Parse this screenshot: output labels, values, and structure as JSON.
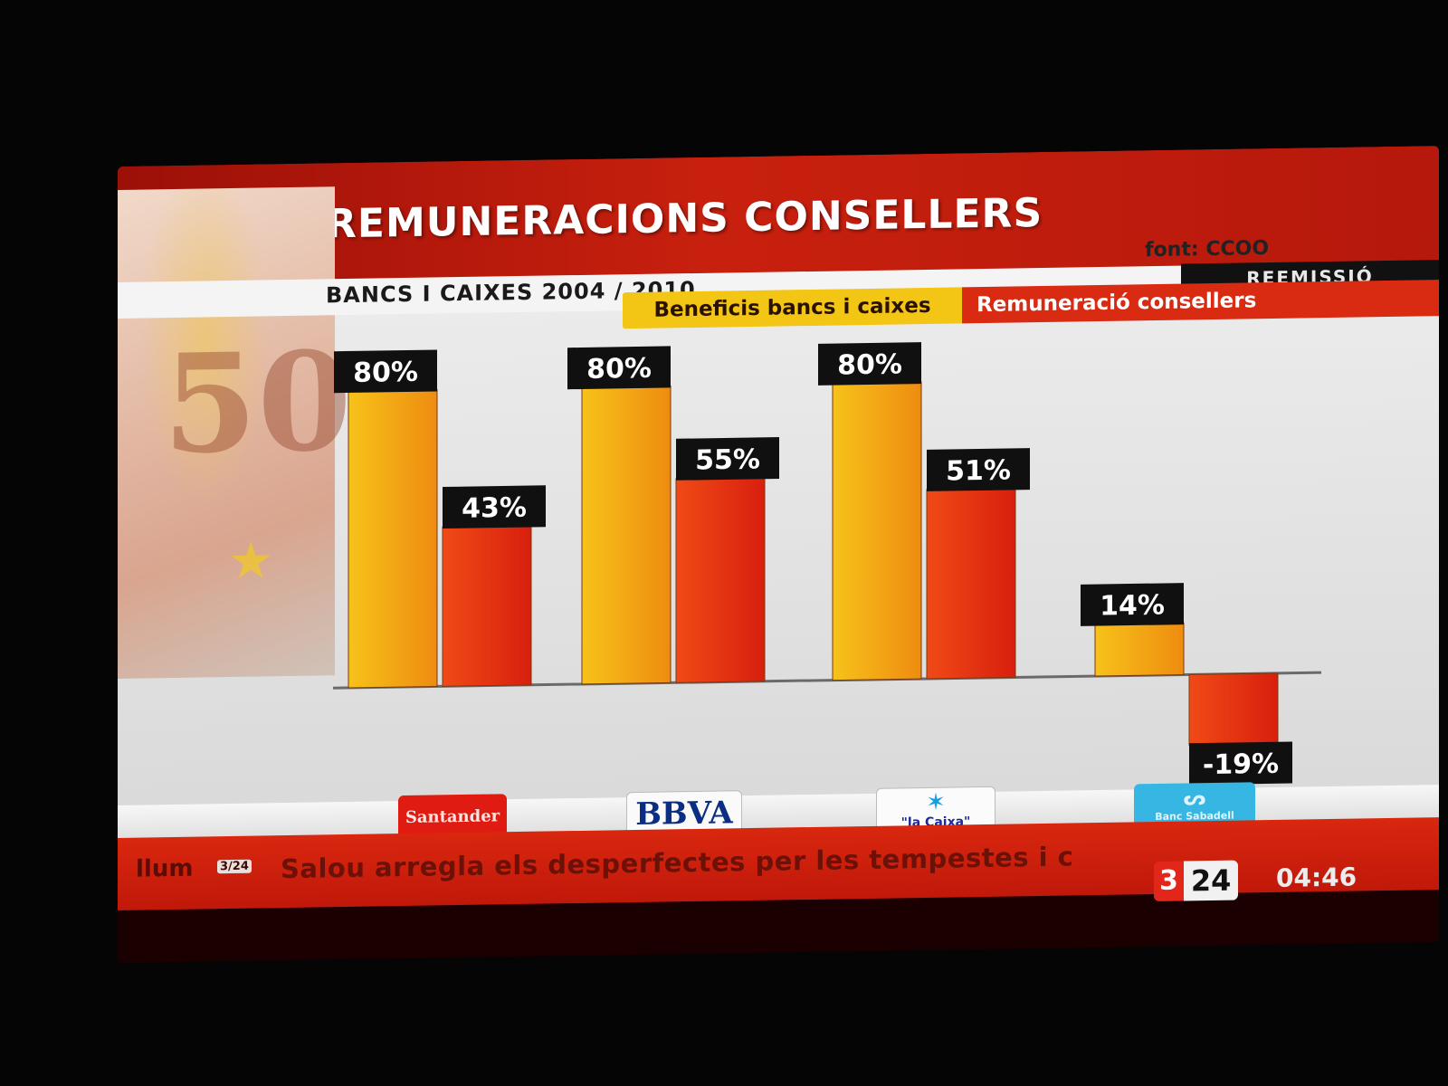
{
  "header": {
    "title": "REMUNERACIONS CONSELLERS",
    "subtitle": "BANCS I CAIXES 2004 / 2010",
    "source": "font: CCOO",
    "rebroadcast": "REEMISSIÓ"
  },
  "legend": {
    "profits": "Beneficis bancs i caixes",
    "pay": "Remuneració consellers"
  },
  "colors": {
    "profits": "#f0a812",
    "pay": "#e83214",
    "label_bg": "#101010",
    "band": "#c41c0e"
  },
  "chart_data": {
    "type": "bar",
    "title": "REMUNERACIONS CONSELLERS",
    "subtitle": "BANCS I CAIXES 2004 / 2010",
    "categories": [
      "Santander",
      "BBVA",
      "la Caixa",
      "Banc Sabadell"
    ],
    "series": [
      {
        "name": "Beneficis bancs i caixes",
        "values": [
          80,
          80,
          80,
          14
        ],
        "labels": [
          "80%",
          "80%",
          "80%",
          "14%"
        ]
      },
      {
        "name": "Remuneració consellers",
        "values": [
          43,
          55,
          51,
          -19
        ],
        "labels": [
          "43%",
          "55%",
          "51%",
          "-19%"
        ]
      }
    ],
    "ylim": [
      -20,
      85
    ],
    "unit": "%",
    "grid": false,
    "legend_position": "top"
  },
  "logos": {
    "santander": "Santander",
    "bbva": "BBVA",
    "caixa": "\"la Caixa\"",
    "sabadell": "Banc Sabadell"
  },
  "ticker": {
    "previous": "llum",
    "small_badge": "3/24",
    "text": "Salou arregla els desperfectes per les tempestes i c",
    "channel_left": "3",
    "channel_right": "24",
    "time": "04:46"
  }
}
